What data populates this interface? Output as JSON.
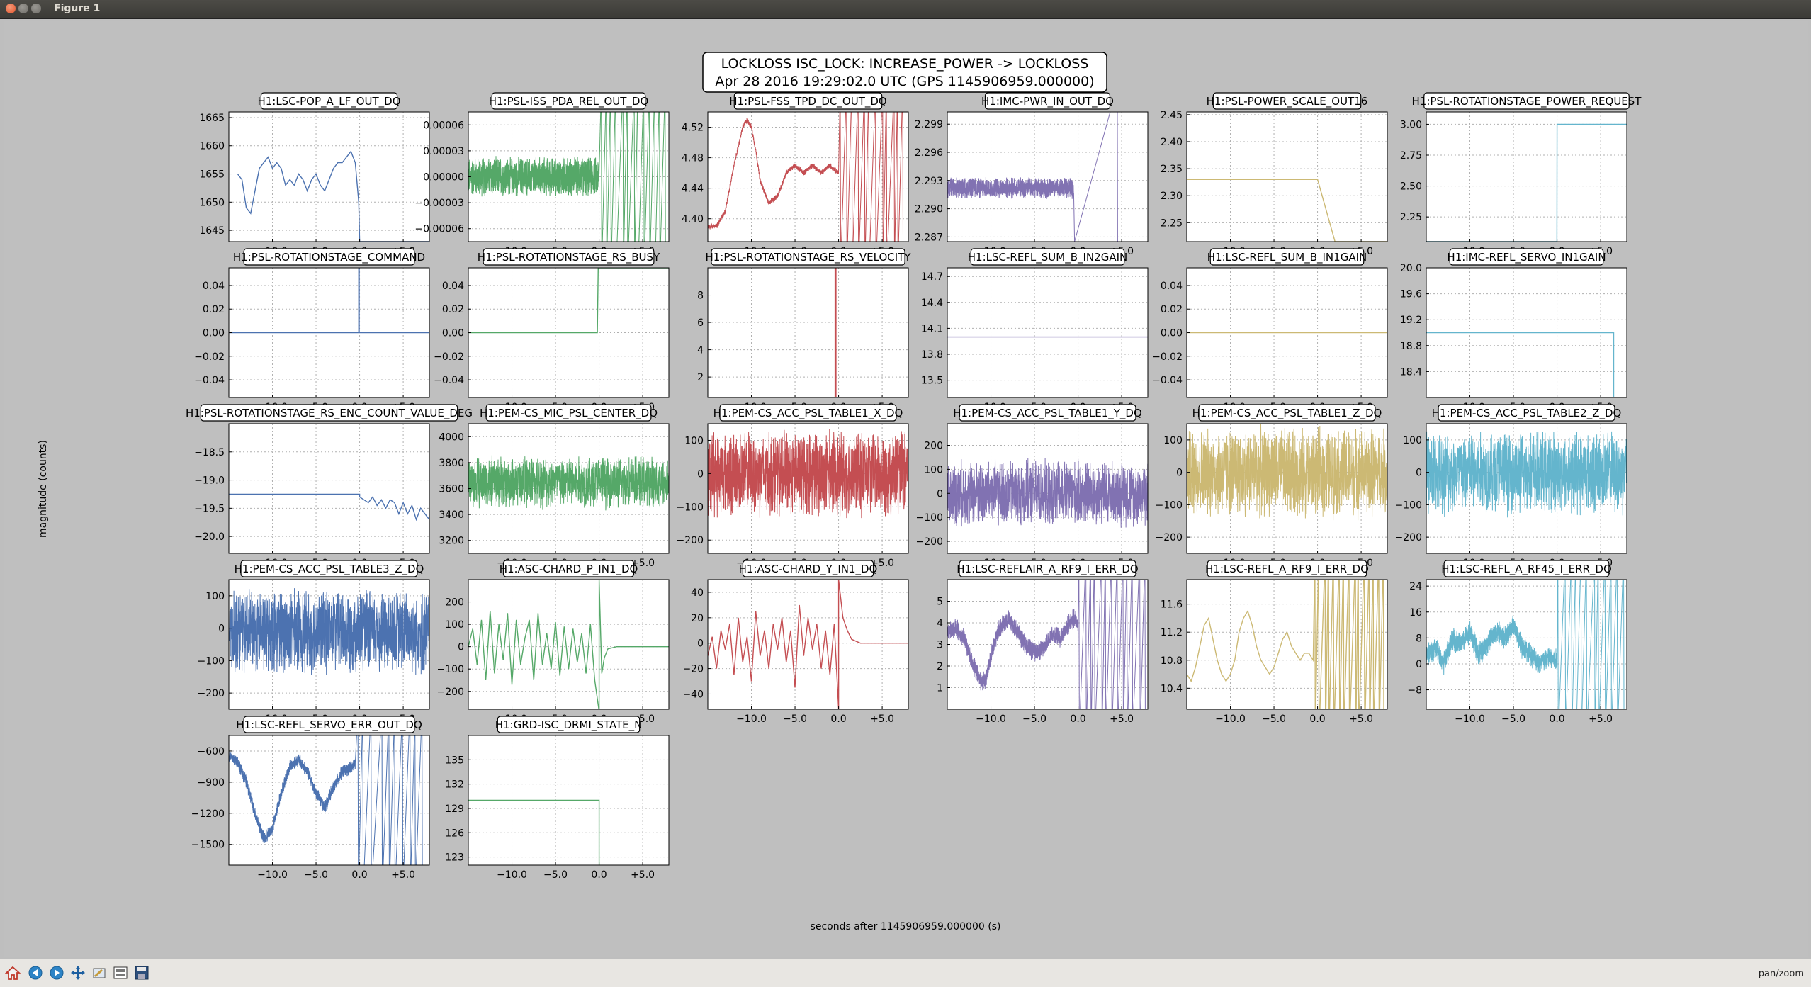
{
  "window": {
    "title": "Figure 1"
  },
  "toolbar": {
    "buttons": [
      "home-icon",
      "back-icon",
      "forward-icon",
      "pan-icon",
      "zoom-icon",
      "subplots-icon",
      "save-icon"
    ],
    "mode": "pan/zoom"
  },
  "figure": {
    "title_line1": "LOCKLOSS ISC_LOCK: INCREASE_POWER -> LOCKLOSS",
    "title_line2": "Apr 28 2016 19:29:02.0 UTC (GPS 1145906959.000000)",
    "xlabel": "seconds after 1145906959.000000 (s)",
    "ylabel": "magnitude (counts)",
    "xticks": [
      "−10.0",
      "−5.0",
      "0.0",
      "+5.0"
    ]
  },
  "chart_data": [
    {
      "type": "line",
      "title": "H1:LSC-POP_A_LF_OUT_DQ",
      "color": "#4c72b0",
      "yticks": [
        "1645",
        "1650",
        "1655",
        "1660",
        "1665"
      ],
      "ylim": [
        1643,
        1666
      ],
      "x": [
        -14,
        -13.5,
        -13,
        -12.5,
        -12,
        -11.5,
        -11,
        -10.5,
        -10,
        -9.5,
        -9,
        -8.5,
        -8,
        -7.5,
        -7,
        -6.5,
        -6,
        -5.5,
        -5,
        -4.5,
        -4,
        -3.5,
        -3,
        -2.5,
        -2,
        -1.5,
        -1,
        -0.5,
        -0.1,
        0,
        8
      ],
      "y": [
        1655,
        1654,
        1649,
        1648,
        1652,
        1656,
        1657,
        1658,
        1656,
        1657,
        1656,
        1653,
        1654,
        1653,
        1655,
        1654,
        1652,
        1654,
        1655,
        1653,
        1652,
        1654,
        1656,
        1657,
        1657,
        1658,
        1659,
        1657,
        1650,
        1643,
        1643
      ]
    },
    {
      "type": "line",
      "title": "H1:PSL-ISS_PDA_REL_OUT_DQ",
      "color": "#55a868",
      "noise": true,
      "yticks": [
        "−0.00006",
        "−0.00003",
        "0.00000",
        "0.00003",
        "0.00006"
      ],
      "ylim": [
        -7.5e-05,
        7.5e-05
      ],
      "x": [
        -15,
        0
      ],
      "y": [
        0,
        0
      ],
      "amp": 2.5e-05,
      "burst_after": 0,
      "burst_amp": 7e-05
    },
    {
      "type": "line",
      "title": "H1:PSL-FSS_TPD_DC_OUT_DQ",
      "color": "#c44e52",
      "yticks": [
        "4.40",
        "4.44",
        "4.48",
        "4.52"
      ],
      "ylim": [
        4.37,
        4.54
      ],
      "x": [
        -15,
        -14,
        -13,
        -12,
        -11,
        -10.5,
        -10,
        -9.5,
        -9,
        -8,
        -7,
        -6,
        -5,
        -4,
        -3,
        -2,
        -1,
        0
      ],
      "y": [
        4.39,
        4.39,
        4.41,
        4.47,
        4.52,
        4.53,
        4.52,
        4.49,
        4.45,
        4.42,
        4.43,
        4.46,
        4.47,
        4.46,
        4.47,
        4.46,
        4.47,
        4.46
      ],
      "amp": 0.004,
      "burst_after": 0,
      "burst_amp": 0.09
    },
    {
      "type": "line",
      "title": "H1:IMC-PWR_IN_OUT_DQ",
      "color": "#8172b2",
      "noise": true,
      "yticks": [
        "2.287",
        "2.290",
        "2.293",
        "2.296",
        "2.299"
      ],
      "ylim": [
        2.2865,
        2.3003
      ],
      "x": [
        -15,
        -0.5
      ],
      "y": [
        2.2922,
        2.2922
      ],
      "amp": 0.0012,
      "drop_after": -0.4,
      "drop_to": 2.2865,
      "spike_at": 4.5
    },
    {
      "type": "line",
      "title": "H1:PSL-POWER_SCALE_OUT16",
      "color": "#ccb974",
      "yticks": [
        "2.25",
        "2.30",
        "2.35",
        "2.40",
        "2.45"
      ],
      "ylim": [
        2.215,
        2.455
      ],
      "x": [
        -15,
        0,
        2,
        8
      ],
      "y": [
        2.33,
        2.33,
        2.215,
        2.215
      ]
    },
    {
      "type": "line",
      "title": "H1:PSL-ROTATIONSTAGE_POWER_REQUEST",
      "color": "#64b5cd",
      "yticks": [
        "2.25",
        "2.50",
        "2.75",
        "3.00"
      ],
      "ylim": [
        2.05,
        3.1
      ],
      "x": [
        -15,
        -0.01,
        0,
        8
      ],
      "y": [
        2.05,
        2.05,
        3.0,
        3.0
      ]
    },
    {
      "type": "line",
      "title": "H1:PSL-ROTATIONSTAGE_COMMAND",
      "color": "#4c72b0",
      "yticks": [
        "−0.04",
        "−0.02",
        "0.00",
        "0.02",
        "0.04"
      ],
      "ylim": [
        -0.055,
        0.055
      ],
      "x": [
        -15,
        -0.1,
        -0.1,
        -0.05,
        -0.05,
        8
      ],
      "y": [
        0,
        0,
        0.055,
        0.055,
        0,
        0
      ]
    },
    {
      "type": "line",
      "title": "H1:PSL-ROTATIONSTAGE_RS_BUSY",
      "color": "#55a868",
      "yticks": [
        "−0.04",
        "−0.02",
        "0.00",
        "0.02",
        "0.04"
      ],
      "ylim": [
        -0.055,
        0.055
      ],
      "x": [
        -15,
        -0.2,
        -0.1,
        -0.1,
        8
      ],
      "y": [
        0,
        0,
        0.055,
        0.055,
        0.055
      ]
    },
    {
      "type": "line",
      "title": "H1:PSL-ROTATIONSTAGE_RS_VELOCITY",
      "color": "#c44e52",
      "yticks": [
        "2",
        "4",
        "6",
        "8"
      ],
      "ylim": [
        0.5,
        10
      ],
      "x": [
        -15,
        -0.4,
        -0.4,
        -0.3,
        -0.3,
        8
      ],
      "y": [
        0.5,
        0.5,
        10,
        10,
        0.5,
        0.5
      ]
    },
    {
      "type": "line",
      "title": "H1:LSC-REFL_SUM_B_IN2GAIN",
      "color": "#8172b2",
      "yticks": [
        "13.5",
        "13.8",
        "14.1",
        "14.4",
        "14.7"
      ],
      "ylim": [
        13.3,
        14.8
      ],
      "x": [
        -15,
        8
      ],
      "y": [
        14.0,
        14.0
      ]
    },
    {
      "type": "line",
      "title": "H1:LSC-REFL_SUM_B_IN1GAIN",
      "color": "#ccb974",
      "yticks": [
        "−0.04",
        "−0.02",
        "0.00",
        "0.02",
        "0.04"
      ],
      "ylim": [
        -0.055,
        0.055
      ],
      "x": [
        -15,
        8
      ],
      "y": [
        0,
        0
      ]
    },
    {
      "type": "line",
      "title": "H1:IMC-REFL_SERVO_IN1GAIN",
      "color": "#64b5cd",
      "yticks": [
        "18.4",
        "18.8",
        "19.2",
        "19.6",
        "20.0"
      ],
      "ylim": [
        18.0,
        20.0
      ],
      "x": [
        -15,
        6.5,
        6.5,
        8
      ],
      "y": [
        19.0,
        19.0,
        18.0,
        18.0
      ]
    },
    {
      "type": "line",
      "title": "H1:PSL-ROTATIONSTAGE_RS_ENC_COUNT_VALUE_DEG",
      "color": "#4c72b0",
      "yticks": [
        "−18.5",
        "−19.0",
        "−19.5",
        "−20.0"
      ],
      "ylim": [
        -20.3,
        -18.0
      ],
      "x": [
        -15,
        0,
        0,
        1,
        1.5,
        2,
        2.5,
        3,
        3.5,
        4,
        4.5,
        5,
        5.5,
        6,
        6.5,
        7,
        8
      ],
      "y": [
        -19.25,
        -19.25,
        -19.3,
        -19.4,
        -19.3,
        -19.45,
        -19.35,
        -19.5,
        -19.35,
        -19.4,
        -19.6,
        -19.4,
        -19.6,
        -19.45,
        -19.7,
        -19.5,
        -19.7
      ]
    },
    {
      "type": "line",
      "title": "H1:PEM-CS_MIC_PSL_CENTER_DQ",
      "color": "#55a868",
      "noise": true,
      "yticks": [
        "3200",
        "3400",
        "3600",
        "3800",
        "4000"
      ],
      "ylim": [
        3100,
        4100
      ],
      "x": [
        -15,
        8
      ],
      "y": [
        3650,
        3650
      ],
      "amp": 220
    },
    {
      "type": "line",
      "title": "H1:PEM-CS_ACC_PSL_TABLE1_X_DQ",
      "color": "#c44e52",
      "noise": true,
      "yticks": [
        "−200",
        "−100",
        "0",
        "100"
      ],
      "ylim": [
        -240,
        150
      ],
      "x": [
        -15,
        8
      ],
      "y": [
        0,
        0
      ],
      "amp": 140,
      "burst_after": -0.5,
      "burst_amp": 260
    },
    {
      "type": "line",
      "title": "H1:PEM-CS_ACC_PSL_TABLE1_Y_DQ",
      "color": "#8172b2",
      "noise": true,
      "yticks": [
        "−200",
        "−100",
        "0",
        "100",
        "200"
      ],
      "ylim": [
        -250,
        290
      ],
      "x": [
        -15,
        8
      ],
      "y": [
        0,
        0
      ],
      "amp": 150,
      "burst_after": -0.5,
      "burst_amp": 300
    },
    {
      "type": "line",
      "title": "H1:PEM-CS_ACC_PSL_TABLE1_Z_DQ",
      "color": "#ccb974",
      "noise": true,
      "yticks": [
        "−200",
        "−100",
        "0",
        "100"
      ],
      "ylim": [
        -250,
        150
      ],
      "x": [
        -15,
        8
      ],
      "y": [
        0,
        0
      ],
      "amp": 150,
      "burst_after": -0.5,
      "burst_amp": 300
    },
    {
      "type": "line",
      "title": "H1:PEM-CS_ACC_PSL_TABLE2_Z_DQ",
      "color": "#64b5cd",
      "noise": true,
      "yticks": [
        "−200",
        "−100",
        "0",
        "100"
      ],
      "ylim": [
        -250,
        150
      ],
      "x": [
        -15,
        8
      ],
      "y": [
        0,
        0
      ],
      "amp": 140
    },
    {
      "type": "line",
      "title": "H1:PEM-CS_ACC_PSL_TABLE3_Z_DQ",
      "color": "#4c72b0",
      "noise": true,
      "yticks": [
        "−200",
        "−100",
        "0",
        "100"
      ],
      "ylim": [
        -250,
        150
      ],
      "x": [
        -15,
        8
      ],
      "y": [
        -10,
        -10
      ],
      "amp": 140,
      "burst_after": -0.5,
      "burst_amp": 200
    },
    {
      "type": "line",
      "title": "H1:ASC-CHARD_P_IN1_DQ",
      "color": "#55a868",
      "yticks": [
        "−200",
        "−100",
        "0",
        "100",
        "200"
      ],
      "ylim": [
        -280,
        300
      ],
      "x": [
        -15,
        -14.5,
        -14,
        -13.5,
        -13,
        -12.5,
        -12,
        -11.5,
        -11,
        -10.5,
        -10,
        -9.5,
        -9,
        -8.5,
        -8,
        -7.5,
        -7,
        -6.5,
        -6,
        -5.5,
        -5,
        -4.5,
        -4,
        -3.5,
        -3,
        -2.5,
        -2,
        -1.5,
        -1,
        -0.5,
        0,
        0,
        0.3,
        0.6,
        1,
        2,
        8
      ],
      "y": [
        0,
        80,
        -80,
        120,
        -150,
        160,
        -120,
        100,
        -60,
        150,
        -170,
        120,
        -80,
        40,
        120,
        -150,
        150,
        -80,
        60,
        -100,
        110,
        -130,
        90,
        -100,
        80,
        -70,
        60,
        -120,
        100,
        -150,
        -290,
        300,
        -120,
        -50,
        -10,
        0,
        0
      ]
    },
    {
      "type": "line",
      "title": "H1:ASC-CHARD_Y_IN1_DQ",
      "color": "#c44e52",
      "yticks": [
        "−40",
        "−20",
        "0",
        "20",
        "40"
      ],
      "ylim": [
        -52,
        50
      ],
      "x": [
        -15,
        -14.5,
        -14,
        -13.5,
        -13,
        -12.5,
        -12,
        -11.5,
        -11,
        -10.5,
        -10,
        -9.5,
        -9,
        -8.5,
        -8,
        -7.5,
        -7,
        -6.5,
        -6,
        -5.5,
        -5,
        -4.5,
        -4,
        -3.5,
        -3,
        -2.5,
        -2,
        -1.5,
        -1,
        -0.5,
        0,
        0,
        0.5,
        1,
        1.5,
        2.5,
        8
      ],
      "y": [
        -10,
        5,
        -20,
        10,
        -5,
        15,
        -25,
        20,
        -15,
        5,
        -30,
        25,
        -10,
        10,
        -20,
        15,
        -5,
        20,
        -15,
        10,
        -35,
        30,
        -10,
        20,
        -5,
        15,
        -20,
        10,
        -25,
        15,
        -52,
        50,
        20,
        10,
        3,
        0,
        0
      ]
    },
    {
      "type": "line",
      "title": "H1:LSC-REFLAIR_A_RF9_I_ERR_DQ",
      "color": "#8172b2",
      "yticks": [
        "1",
        "2",
        "3",
        "4",
        "5"
      ],
      "ylim": [
        0,
        6
      ],
      "x": [
        -15,
        -14,
        -13,
        -12,
        -11,
        -10.5,
        -10,
        -9,
        -8,
        -7,
        -6,
        -5,
        -4,
        -3,
        -2,
        -1,
        -0.5,
        0
      ],
      "y": [
        3.5,
        3.8,
        3.2,
        2.0,
        1.2,
        1.5,
        2.5,
        3.8,
        4.2,
        3.6,
        3.0,
        2.6,
        2.8,
        3.5,
        3.3,
        4.0,
        4.2,
        4.0
      ],
      "amp": 0.5,
      "burst_after": 0,
      "burst_amp": 3
    },
    {
      "type": "line",
      "title": "H1:LSC-REFL_A_RF9_I_ERR_DQ",
      "color": "#ccb974",
      "yticks": [
        "10.4",
        "10.8",
        "11.2",
        "11.6"
      ],
      "ylim": [
        10.1,
        11.95
      ],
      "x": [
        -15,
        -14.5,
        -14,
        -13.5,
        -13,
        -12.5,
        -12,
        -11.5,
        -11,
        -10.5,
        -10,
        -9.5,
        -9,
        -8.5,
        -8,
        -7.5,
        -7,
        -6.5,
        -6,
        -5.5,
        -5,
        -4.5,
        -4,
        -3.5,
        -3,
        -2.5,
        -2,
        -1.5,
        -1,
        -0.5
      ],
      "y": [
        10.6,
        10.5,
        10.7,
        11.0,
        11.3,
        11.4,
        11.1,
        10.8,
        10.6,
        10.5,
        10.6,
        10.8,
        11.2,
        11.4,
        11.5,
        11.3,
        11.0,
        10.8,
        10.7,
        10.6,
        10.7,
        10.9,
        11.1,
        11.2,
        11.0,
        10.9,
        10.8,
        10.9,
        10.9,
        10.8
      ],
      "burst_after": -0.5,
      "burst_amp": 1.8
    },
    {
      "type": "line",
      "title": "H1:LSC-REFL_A_RF45_I_ERR_DQ",
      "color": "#64b5cd",
      "yticks": [
        "−8",
        "0",
        "8",
        "16",
        "24"
      ],
      "ylim": [
        -14,
        26
      ],
      "x": [
        -15,
        -14,
        -13,
        -12,
        -11,
        -10,
        -9,
        -8,
        -7,
        -6,
        -5,
        -4,
        -3,
        -2,
        -1,
        0
      ],
      "y": [
        2,
        5,
        0,
        8,
        6,
        10,
        3,
        6,
        10,
        8,
        12,
        5,
        3,
        0,
        2,
        1
      ],
      "amp": 4,
      "burst_after": -0.5,
      "burst_amp": 22
    },
    {
      "type": "line",
      "title": "H1:LSC-REFL_SERVO_ERR_OUT_DQ",
      "color": "#4c72b0",
      "yticks": [
        "−1500",
        "−1200",
        "−900",
        "−600"
      ],
      "ylim": [
        -1700,
        -450
      ],
      "x": [
        -15,
        -14,
        -13,
        -12,
        -11,
        -10,
        -9,
        -8,
        -7,
        -6,
        -5,
        -4,
        -3,
        -2,
        -1,
        -0.5
      ],
      "y": [
        -650,
        -700,
        -900,
        -1200,
        -1450,
        -1350,
        -1000,
        -750,
        -680,
        -800,
        -1000,
        -1150,
        -950,
        -800,
        -760,
        -730
      ],
      "amp": 70,
      "burst_after": -0.5,
      "burst_amp": 600
    },
    {
      "type": "line",
      "title": "H1:GRD-ISC_DRMI_STATE_N",
      "color": "#55a868",
      "yticks": [
        "123",
        "126",
        "129",
        "132",
        "135"
      ],
      "ylim": [
        122,
        138
      ],
      "x": [
        -15,
        0,
        0
      ],
      "y": [
        130,
        130,
        122
      ]
    }
  ]
}
